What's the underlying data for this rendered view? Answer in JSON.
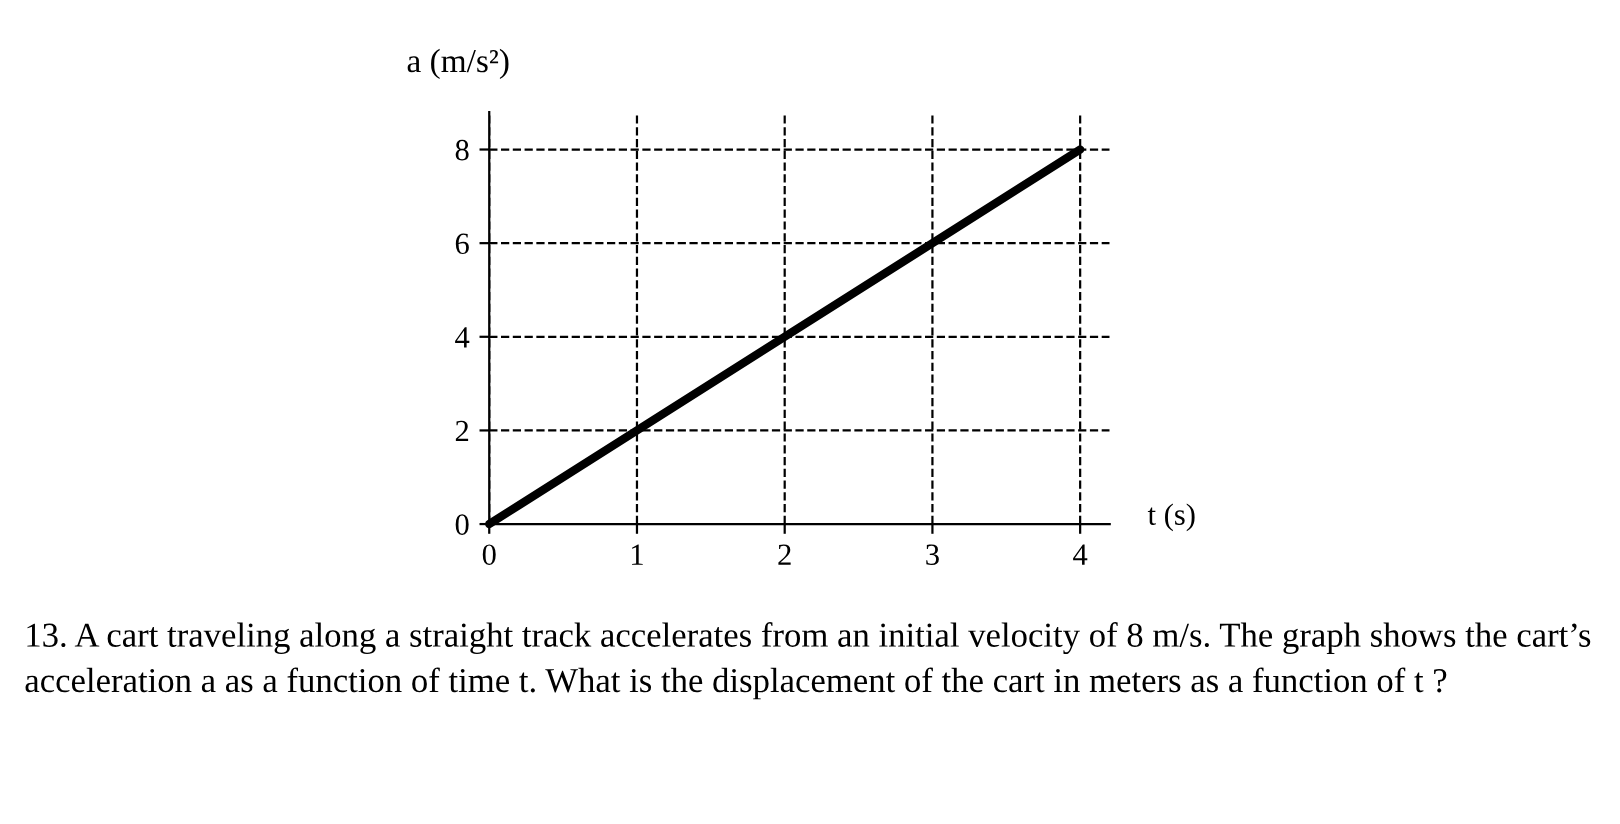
{
  "chart_data": {
    "type": "line",
    "xlabel": "t (s)",
    "ylabel": "a (m/s²)",
    "x": [
      0,
      4
    ],
    "series": [
      {
        "color": "#000000",
        "values": [
          0,
          8
        ]
      }
    ],
    "xlim": [
      0,
      4.2
    ],
    "ylim": [
      0,
      8.8
    ],
    "xticks": [
      0,
      1,
      2,
      3,
      4
    ],
    "yticks": [
      0,
      2,
      4,
      6,
      8
    ],
    "grid": true,
    "line_style": "solid",
    "annotations": [
      "13. A cart traveling along a straight track accelerates from an initial velocity of 8 m/s. The graph shows the cart’s acceleration a as a function of time t. What is the displacement of the cart in meters as a function of t ?"
    ]
  }
}
